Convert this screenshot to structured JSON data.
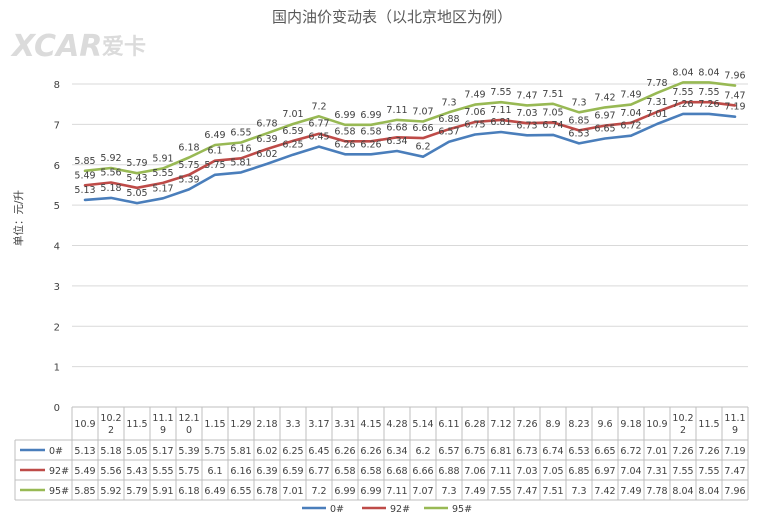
{
  "chart_data": {
    "type": "line",
    "title": "国内油价变动表（以北京地区为例）",
    "ylabel": "单位：元/升",
    "xlabel": "",
    "ylim": [
      0,
      8
    ],
    "yticks": [
      0,
      1,
      2,
      3,
      4,
      5,
      6,
      7,
      8
    ],
    "grid": true,
    "legend_position": "bottom",
    "categories": [
      "10.9",
      "10.22",
      "11.5",
      "11.19",
      "12.10",
      "1.15",
      "1.29",
      "2.18",
      "3.3",
      "3.17",
      "3.31",
      "4.15",
      "4.28",
      "5.14",
      "6.11",
      "6.28",
      "7.12",
      "7.26",
      "8.9",
      "8.23",
      "9.6",
      "9.18",
      "10.9",
      "10.22",
      "11.5",
      "11.19"
    ],
    "category_display": [
      [
        "10.9"
      ],
      [
        "10.2",
        "2"
      ],
      [
        "11.5"
      ],
      [
        "11.1",
        "9"
      ],
      [
        "12.1",
        "0"
      ],
      [
        "1.15"
      ],
      [
        "1.29"
      ],
      [
        "2.18"
      ],
      [
        "3.3"
      ],
      [
        "3.17"
      ],
      [
        "3.31"
      ],
      [
        "4.15"
      ],
      [
        "4.28"
      ],
      [
        "5.14"
      ],
      [
        "6.11"
      ],
      [
        "6.28"
      ],
      [
        "7.12"
      ],
      [
        "7.26"
      ],
      [
        "8.9"
      ],
      [
        "8.23"
      ],
      [
        "9.6"
      ],
      [
        "9.18"
      ],
      [
        "10.9"
      ],
      [
        "10.2",
        "2"
      ],
      [
        "11.5"
      ],
      [
        "11.1",
        "9"
      ]
    ],
    "series": [
      {
        "name": "0#",
        "color": "#4a7ebb",
        "values": [
          5.13,
          5.18,
          5.05,
          5.17,
          5.39,
          5.75,
          5.81,
          6.02,
          6.25,
          6.45,
          6.26,
          6.26,
          6.34,
          6.2,
          6.57,
          6.75,
          6.81,
          6.73,
          6.74,
          6.53,
          6.65,
          6.72,
          7.01,
          7.26,
          7.26,
          7.19
        ]
      },
      {
        "name": "92#",
        "color": "#be4b48",
        "values": [
          5.49,
          5.56,
          5.43,
          5.55,
          5.75,
          6.1,
          6.16,
          6.39,
          6.59,
          6.77,
          6.58,
          6.58,
          6.68,
          6.66,
          6.88,
          7.06,
          7.11,
          7.03,
          7.05,
          6.85,
          6.97,
          7.04,
          7.31,
          7.55,
          7.55,
          7.47
        ]
      },
      {
        "name": "95#",
        "color": "#98b954",
        "values": [
          5.85,
          5.92,
          5.79,
          5.91,
          6.18,
          6.49,
          6.55,
          6.78,
          7.01,
          7.2,
          6.99,
          6.99,
          7.11,
          7.07,
          7.3,
          7.49,
          7.55,
          7.47,
          7.51,
          7.3,
          7.42,
          7.49,
          7.78,
          8.04,
          8.04,
          7.96
        ]
      }
    ]
  },
  "watermark": {
    "text": "XCAR 爱卡"
  },
  "colors": {
    "grid": "#d9d9d9",
    "axis": "#bfbfbf",
    "text": "#404040"
  }
}
